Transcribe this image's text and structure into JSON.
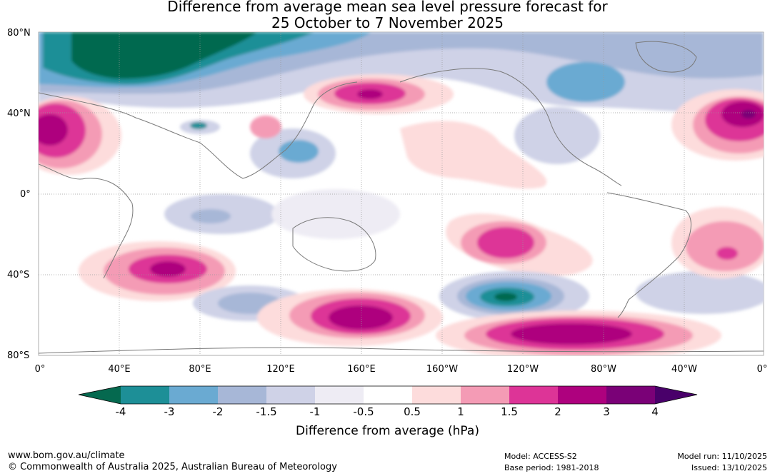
{
  "title": {
    "line1": "Difference from average mean sea level pressure forecast for",
    "line2": "25 October to 7 November 2025"
  },
  "axes": {
    "lat_labels": [
      "80°N",
      "40°N",
      "0°",
      "40°S",
      "80°S"
    ],
    "lon_labels": [
      "0°",
      "40°E",
      "80°E",
      "120°E",
      "160°E",
      "160°W",
      "120°W",
      "80°W",
      "40°W",
      "0°"
    ]
  },
  "colorbar": {
    "ticks": [
      "-4",
      "-3",
      "-2",
      "-1.5",
      "-1",
      "-0.5",
      "0.5",
      "1",
      "1.5",
      "2",
      "3",
      "4"
    ],
    "colors": {
      "below_min": "#05694f",
      "c_m4_m3": "#1d8f97",
      "c_m3_m2": "#6aaad2",
      "c_m2_m15": "#a7b7d7",
      "c_m15_m1": "#cfd2e7",
      "c_m1_m05": "#eeecf4",
      "c_m05_05": "#ffffff",
      "c_05_1": "#fddcdc",
      "c_1_15": "#f49bb5",
      "c_15_2": "#dd3497",
      "c_2_3": "#ae017e",
      "c_3_4": "#7a0177",
      "above_max": "#49006a"
    },
    "label": "Difference from average (hPa)"
  },
  "footer": {
    "url": "www.bom.gov.au/climate",
    "copyright": "© Commonwealth of Australia 2025, Australian Bureau of Meteorology",
    "model": "Model: ACCESS-S2",
    "base_period": "Base period: 1981-2018",
    "model_run": "Model run: 11/10/2025",
    "issued": "Issued: 13/10/2025"
  }
}
